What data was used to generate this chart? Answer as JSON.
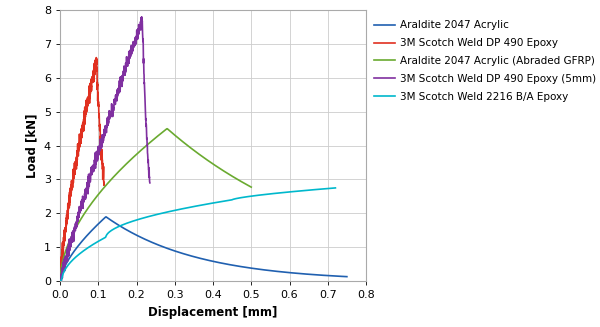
{
  "title": "",
  "xlabel": "Displacement [mm]",
  "ylabel": "Load [kN]",
  "xlim": [
    0,
    0.8
  ],
  "ylim": [
    0,
    8
  ],
  "xticks": [
    0.0,
    0.1,
    0.2,
    0.3,
    0.4,
    0.5,
    0.6,
    0.7,
    0.8
  ],
  "yticks": [
    0,
    1,
    2,
    3,
    4,
    5,
    6,
    7,
    8
  ],
  "series": [
    {
      "label": "Araldite 2047 Acrylic",
      "color": "#2060b0",
      "style": "solid"
    },
    {
      "label": "3M Scotch Weld DP 490 Epoxy",
      "color": "#e03020",
      "style": "solid"
    },
    {
      "label": "Araldite 2047 Acrylic (Abraded GFRP)",
      "color": "#6aaa30",
      "style": "solid"
    },
    {
      "label": "3M Scotch Weld DP 490 Epoxy (5mm)",
      "color": "#8030a0",
      "style": "solid"
    },
    {
      "label": "3M Scotch Weld 2216 B/A Epoxy",
      "color": "#00b8cc",
      "style": "solid"
    }
  ],
  "plot_bg": "#ffffff",
  "fig_bg": "#ffffff",
  "grid_color": "#cccccc",
  "legend_fontsize": 7.5,
  "axis_label_fontsize": 8.5,
  "tick_fontsize": 8
}
